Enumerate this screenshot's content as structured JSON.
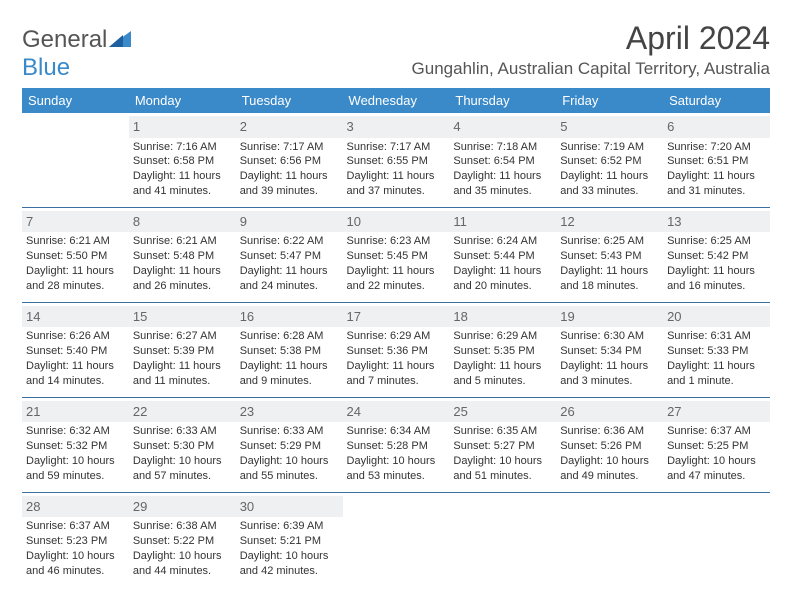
{
  "logo": {
    "text1": "General",
    "text2": "Blue"
  },
  "title": "April 2024",
  "location": "Gungahlin, Australian Capital Territory, Australia",
  "colors": {
    "header_bg": "#3a89c9",
    "header_text": "#ffffff",
    "daynum_bg": "#eef0f1",
    "row_divider": "#3a6fa0",
    "body_text": "#333333"
  },
  "day_headers": [
    "Sunday",
    "Monday",
    "Tuesday",
    "Wednesday",
    "Thursday",
    "Friday",
    "Saturday"
  ],
  "weeks": [
    [
      null,
      {
        "n": "1",
        "sr": "7:16 AM",
        "ss": "6:58 PM",
        "dl": "11 hours and 41 minutes."
      },
      {
        "n": "2",
        "sr": "7:17 AM",
        "ss": "6:56 PM",
        "dl": "11 hours and 39 minutes."
      },
      {
        "n": "3",
        "sr": "7:17 AM",
        "ss": "6:55 PM",
        "dl": "11 hours and 37 minutes."
      },
      {
        "n": "4",
        "sr": "7:18 AM",
        "ss": "6:54 PM",
        "dl": "11 hours and 35 minutes."
      },
      {
        "n": "5",
        "sr": "7:19 AM",
        "ss": "6:52 PM",
        "dl": "11 hours and 33 minutes."
      },
      {
        "n": "6",
        "sr": "7:20 AM",
        "ss": "6:51 PM",
        "dl": "11 hours and 31 minutes."
      }
    ],
    [
      {
        "n": "7",
        "sr": "6:21 AM",
        "ss": "5:50 PM",
        "dl": "11 hours and 28 minutes."
      },
      {
        "n": "8",
        "sr": "6:21 AM",
        "ss": "5:48 PM",
        "dl": "11 hours and 26 minutes."
      },
      {
        "n": "9",
        "sr": "6:22 AM",
        "ss": "5:47 PM",
        "dl": "11 hours and 24 minutes."
      },
      {
        "n": "10",
        "sr": "6:23 AM",
        "ss": "5:45 PM",
        "dl": "11 hours and 22 minutes."
      },
      {
        "n": "11",
        "sr": "6:24 AM",
        "ss": "5:44 PM",
        "dl": "11 hours and 20 minutes."
      },
      {
        "n": "12",
        "sr": "6:25 AM",
        "ss": "5:43 PM",
        "dl": "11 hours and 18 minutes."
      },
      {
        "n": "13",
        "sr": "6:25 AM",
        "ss": "5:42 PM",
        "dl": "11 hours and 16 minutes."
      }
    ],
    [
      {
        "n": "14",
        "sr": "6:26 AM",
        "ss": "5:40 PM",
        "dl": "11 hours and 14 minutes."
      },
      {
        "n": "15",
        "sr": "6:27 AM",
        "ss": "5:39 PM",
        "dl": "11 hours and 11 minutes."
      },
      {
        "n": "16",
        "sr": "6:28 AM",
        "ss": "5:38 PM",
        "dl": "11 hours and 9 minutes."
      },
      {
        "n": "17",
        "sr": "6:29 AM",
        "ss": "5:36 PM",
        "dl": "11 hours and 7 minutes."
      },
      {
        "n": "18",
        "sr": "6:29 AM",
        "ss": "5:35 PM",
        "dl": "11 hours and 5 minutes."
      },
      {
        "n": "19",
        "sr": "6:30 AM",
        "ss": "5:34 PM",
        "dl": "11 hours and 3 minutes."
      },
      {
        "n": "20",
        "sr": "6:31 AM",
        "ss": "5:33 PM",
        "dl": "11 hours and 1 minute."
      }
    ],
    [
      {
        "n": "21",
        "sr": "6:32 AM",
        "ss": "5:32 PM",
        "dl": "10 hours and 59 minutes."
      },
      {
        "n": "22",
        "sr": "6:33 AM",
        "ss": "5:30 PM",
        "dl": "10 hours and 57 minutes."
      },
      {
        "n": "23",
        "sr": "6:33 AM",
        "ss": "5:29 PM",
        "dl": "10 hours and 55 minutes."
      },
      {
        "n": "24",
        "sr": "6:34 AM",
        "ss": "5:28 PM",
        "dl": "10 hours and 53 minutes."
      },
      {
        "n": "25",
        "sr": "6:35 AM",
        "ss": "5:27 PM",
        "dl": "10 hours and 51 minutes."
      },
      {
        "n": "26",
        "sr": "6:36 AM",
        "ss": "5:26 PM",
        "dl": "10 hours and 49 minutes."
      },
      {
        "n": "27",
        "sr": "6:37 AM",
        "ss": "5:25 PM",
        "dl": "10 hours and 47 minutes."
      }
    ],
    [
      {
        "n": "28",
        "sr": "6:37 AM",
        "ss": "5:23 PM",
        "dl": "10 hours and 46 minutes."
      },
      {
        "n": "29",
        "sr": "6:38 AM",
        "ss": "5:22 PM",
        "dl": "10 hours and 44 minutes."
      },
      {
        "n": "30",
        "sr": "6:39 AM",
        "ss": "5:21 PM",
        "dl": "10 hours and 42 minutes."
      },
      null,
      null,
      null,
      null
    ]
  ],
  "labels": {
    "sunrise": "Sunrise:",
    "sunset": "Sunset:",
    "daylight": "Daylight:"
  }
}
